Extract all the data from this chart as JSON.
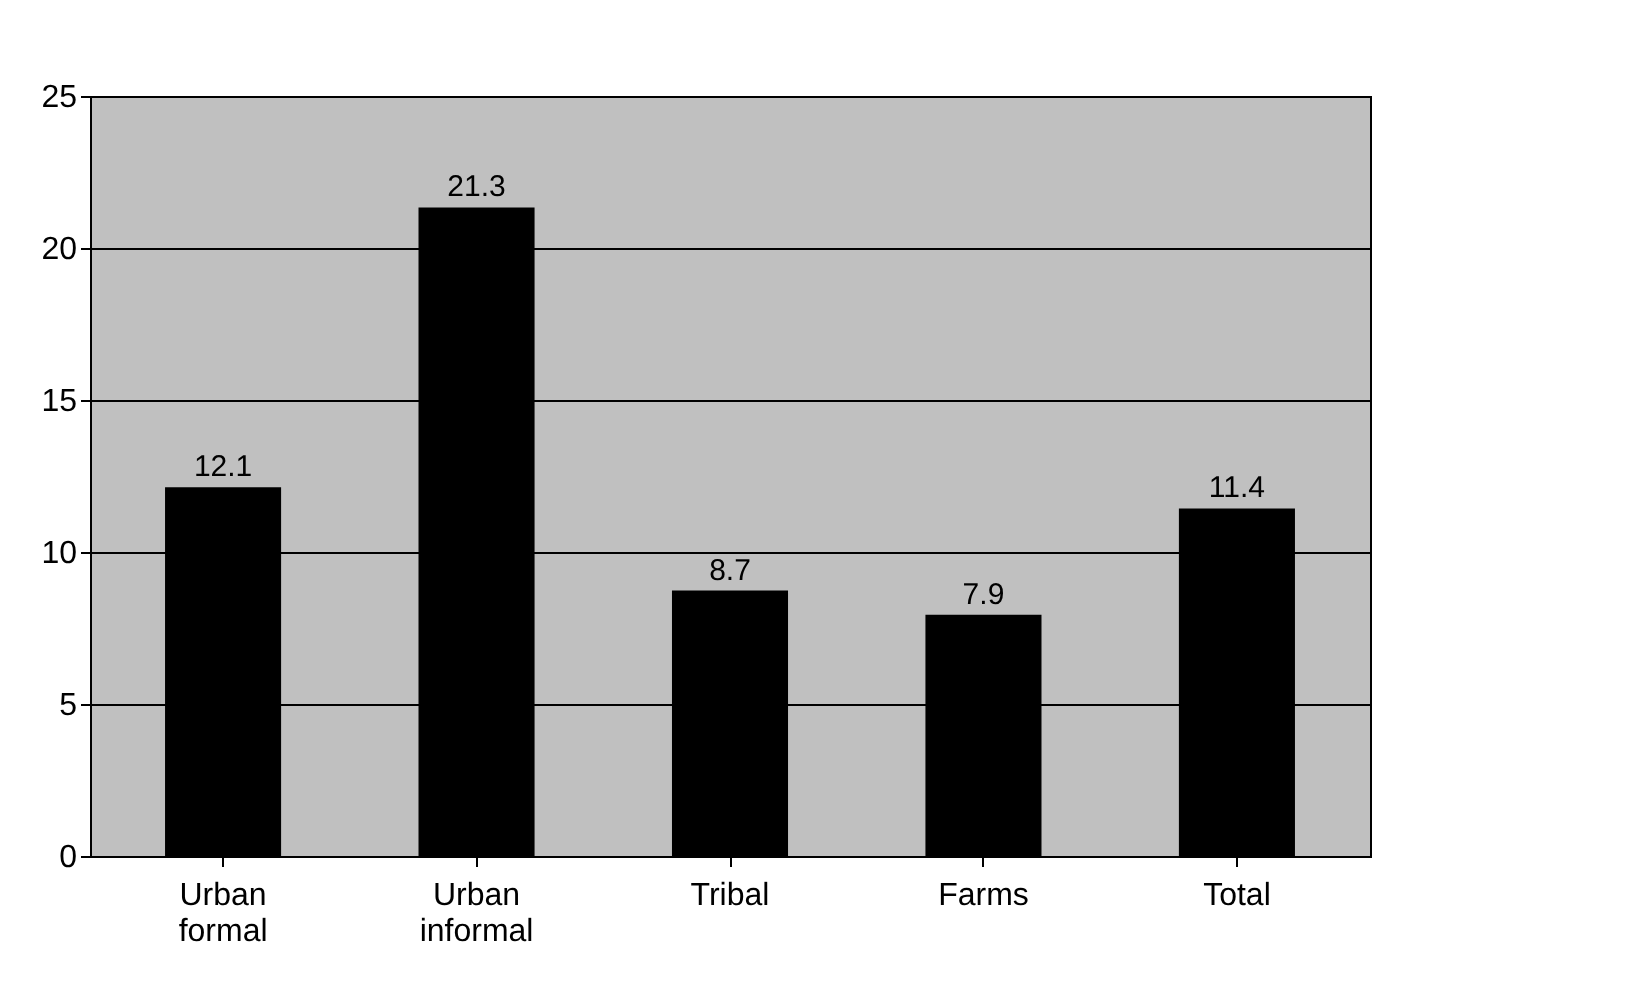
{
  "chart_data": {
    "type": "bar",
    "categories": [
      "Urban formal",
      "Urban informal",
      "Tribal",
      "Farms",
      "Total"
    ],
    "values": [
      12.1,
      21.3,
      8.7,
      7.9,
      11.4
    ],
    "color": "#000000",
    "ylim": [
      0,
      25
    ],
    "yticks": [
      0,
      5,
      10,
      15,
      20,
      25
    ],
    "grid": "y",
    "data_labels": true
  }
}
